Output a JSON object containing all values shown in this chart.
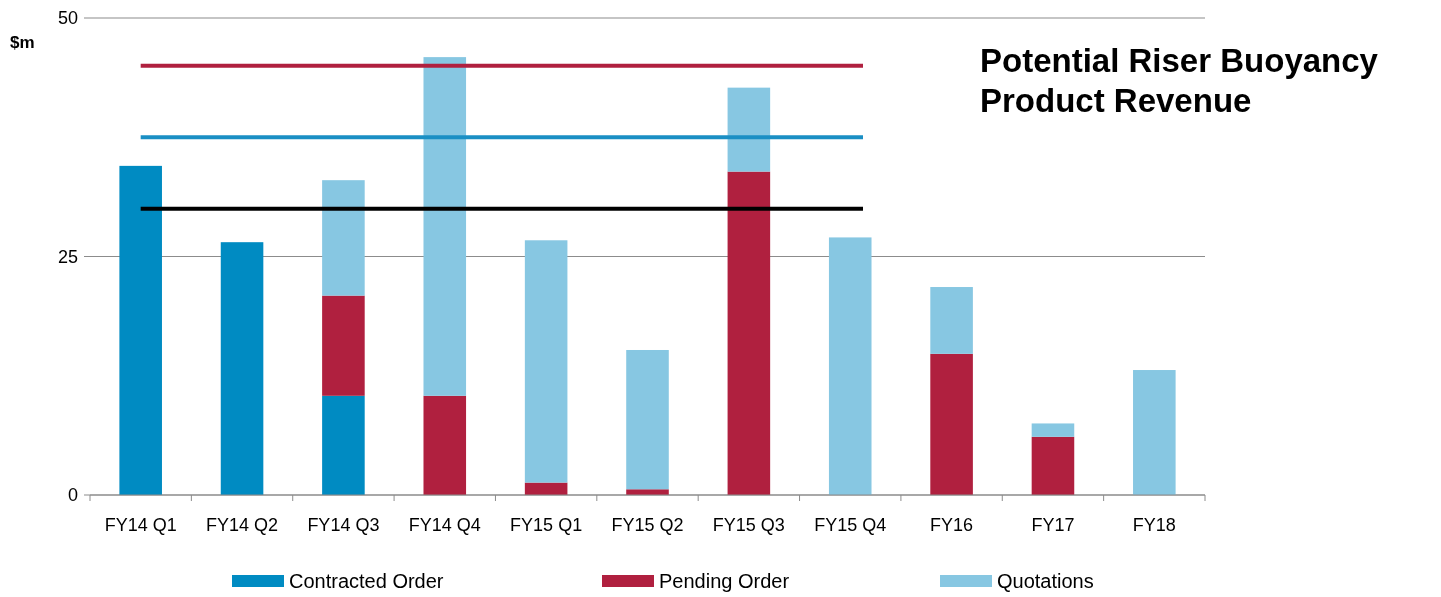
{
  "chart_data": {
    "type": "bar",
    "title": "Potential Riser Buoyancy Product Revenue",
    "ylabel": "$m",
    "categories": [
      "FY14 Q1",
      "FY14 Q2",
      "FY14 Q3",
      "FY14 Q4",
      "FY15 Q1",
      "FY15 Q2",
      "FY15 Q3",
      "FY15 Q4",
      "FY16",
      "FY17",
      "FY18"
    ],
    "stacked": true,
    "series": [
      {
        "name": "Contracted Order",
        "color": "#008bc2",
        "values": [
          34.5,
          26.5,
          10.4,
          0,
          0,
          0,
          0,
          0,
          0,
          0,
          0
        ]
      },
      {
        "name": "Pending Order",
        "color": "#b0203f",
        "values": [
          0,
          0,
          10.5,
          10.4,
          1.3,
          0.6,
          33.9,
          0,
          14.8,
          6.1,
          0
        ]
      },
      {
        "name": "Quotations",
        "color": "#87c7e2",
        "values": [
          0,
          0,
          12.1,
          35.5,
          25.4,
          14.6,
          8.8,
          27.0,
          7.0,
          1.4,
          13.1
        ]
      }
    ],
    "ylim": [
      0,
      50
    ],
    "yticks": [
      0,
      25,
      50
    ],
    "grid": "y",
    "legend": "bottom",
    "ref_lines": [
      {
        "axis": "y",
        "value": 45,
        "color": "#b0203f"
      },
      {
        "axis": "y",
        "value": 37.5,
        "color": "#1a8fc4"
      },
      {
        "axis": "y",
        "value": 30,
        "color": "#000000"
      }
    ]
  }
}
